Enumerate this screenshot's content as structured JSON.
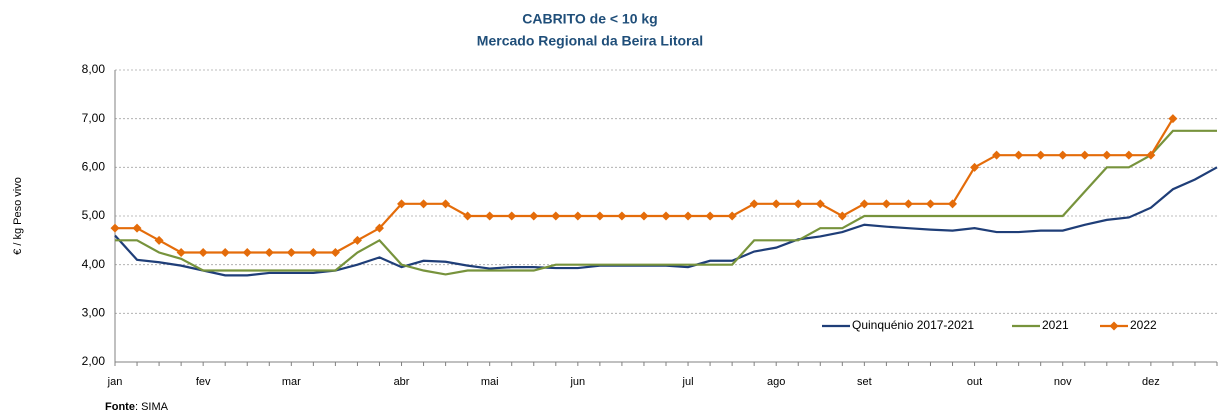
{
  "chart_data": {
    "type": "line",
    "title": "CABRITO de < 10 kg",
    "subtitle": "Mercado Regional da Beira Litoral",
    "y_label": "€ / kg Peso vivo",
    "source": {
      "label": "Fonte",
      "text": ": SIMA"
    },
    "categories": [
      "jan",
      null,
      null,
      null,
      "fev",
      null,
      null,
      null,
      "mar",
      null,
      null,
      null,
      null,
      "abr",
      null,
      null,
      null,
      "mai",
      null,
      null,
      null,
      "jun",
      null,
      null,
      null,
      null,
      "jul",
      null,
      null,
      null,
      "ago",
      null,
      null,
      null,
      "set",
      null,
      null,
      null,
      null,
      "out",
      null,
      null,
      null,
      "nov",
      null,
      null,
      null,
      "dez",
      null,
      null,
      null
    ],
    "series": [
      {
        "name": "Quinquénio 2017-2021",
        "color": "#1f3e78",
        "marker": false,
        "values": [
          4.6,
          4.1,
          4.05,
          3.98,
          3.88,
          3.78,
          3.78,
          3.83,
          3.83,
          3.83,
          3.88,
          4.0,
          4.15,
          3.95,
          4.08,
          4.06,
          3.98,
          3.92,
          3.95,
          3.95,
          3.93,
          3.93,
          3.98,
          3.98,
          3.98,
          3.98,
          3.95,
          4.08,
          4.08,
          4.27,
          4.35,
          4.52,
          4.58,
          4.67,
          4.82,
          4.78,
          4.75,
          4.72,
          4.7,
          4.75,
          4.67,
          4.67,
          4.7,
          4.7,
          4.82,
          4.92,
          4.97,
          5.17,
          5.55,
          5.75,
          6.0
        ]
      },
      {
        "name": "2021",
        "color": "#77933c",
        "marker": false,
        "values": [
          4.5,
          4.5,
          4.25,
          4.12,
          3.88,
          3.88,
          3.88,
          3.88,
          3.88,
          3.88,
          3.88,
          4.25,
          4.5,
          4.0,
          3.88,
          3.8,
          3.88,
          3.88,
          3.88,
          3.88,
          4.0,
          4.0,
          4.0,
          4.0,
          4.0,
          4.0,
          4.0,
          4.0,
          4.0,
          4.5,
          4.5,
          4.5,
          4.75,
          4.75,
          5.0,
          5.0,
          5.0,
          5.0,
          5.0,
          5.0,
          5.0,
          5.0,
          5.0,
          5.0,
          5.5,
          6.0,
          6.0,
          6.25,
          6.75,
          6.75,
          6.75
        ]
      },
      {
        "name": "2022",
        "color": "#e46c0a",
        "marker": true,
        "values": [
          4.75,
          4.75,
          4.5,
          4.25,
          4.25,
          4.25,
          4.25,
          4.25,
          4.25,
          4.25,
          4.25,
          4.5,
          4.75,
          5.25,
          5.25,
          5.25,
          5.0,
          5.0,
          5.0,
          5.0,
          5.0,
          5.0,
          5.0,
          5.0,
          5.0,
          5.0,
          5.0,
          5.0,
          5.0,
          5.25,
          5.25,
          5.25,
          5.25,
          5.0,
          5.25,
          5.25,
          5.25,
          5.25,
          5.25,
          6.0,
          6.25,
          6.25,
          6.25,
          6.25,
          6.25,
          6.25,
          6.25,
          6.25,
          7.0,
          null,
          null
        ]
      }
    ],
    "ylim": [
      2,
      8
    ],
    "yticks": [
      {
        "value": 2,
        "label": "2,00"
      },
      {
        "value": 3,
        "label": "3,00"
      },
      {
        "value": 4,
        "label": "4,00"
      },
      {
        "value": 5,
        "label": "5,00"
      },
      {
        "value": 6,
        "label": "6,00"
      },
      {
        "value": 7,
        "label": "7,00"
      },
      {
        "value": 8,
        "label": "8,00"
      }
    ],
    "grid": true,
    "legend": "bottom-right"
  }
}
